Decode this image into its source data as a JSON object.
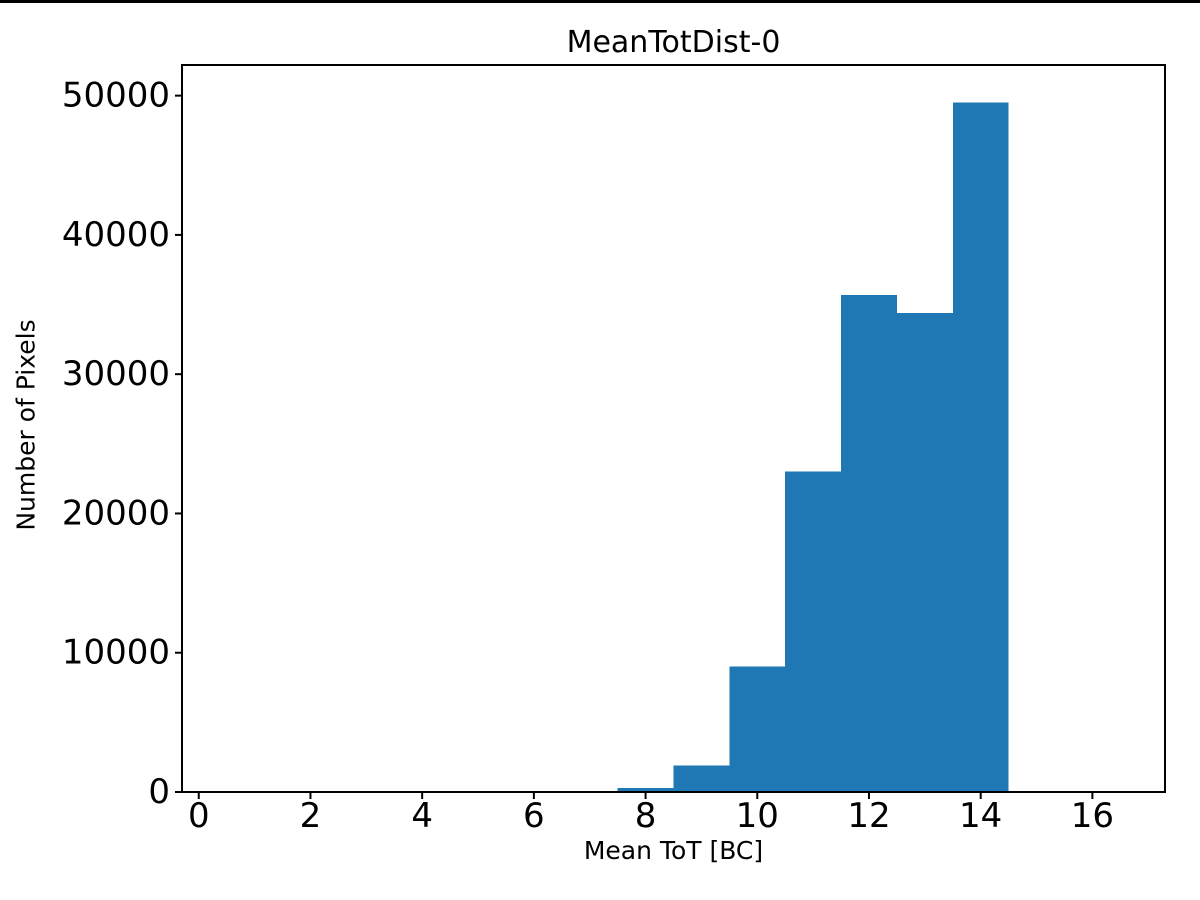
{
  "window": {
    "background": "#ffffff",
    "top_edge_color": "#000000"
  },
  "chart_data": {
    "type": "bar",
    "subtype": "histogram",
    "title": "MeanTotDist-0",
    "xlabel": "Mean ToT [BC]",
    "ylabel": "Number of Pixels",
    "bar_color": "#1f77b4",
    "axis_color": "#000000",
    "text_color": "#000000",
    "bin_edges": [
      7.5,
      8.5,
      9.5,
      10.5,
      11.5,
      12.5,
      13.5,
      14.5
    ],
    "values": [
      300,
      1900,
      9000,
      23000,
      35700,
      34400,
      49500
    ],
    "xlim": [
      -0.3,
      17.3
    ],
    "ylim": [
      0,
      52200
    ],
    "xticks": [
      0,
      2,
      4,
      6,
      8,
      10,
      12,
      14,
      16
    ],
    "yticks": [
      0,
      10000,
      20000,
      30000,
      40000,
      50000
    ],
    "grid": false,
    "legend_position": "none"
  }
}
